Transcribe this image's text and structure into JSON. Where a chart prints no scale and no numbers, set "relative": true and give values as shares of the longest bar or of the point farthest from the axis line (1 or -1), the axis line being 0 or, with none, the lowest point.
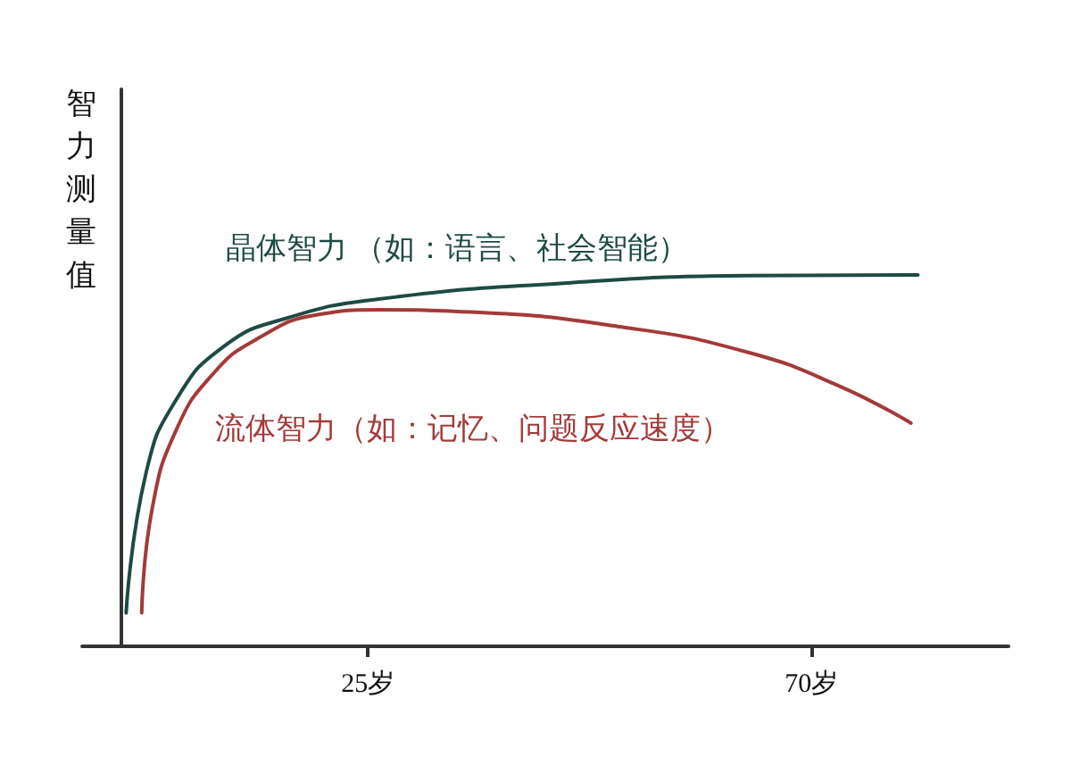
{
  "chart_data": {
    "type": "line",
    "relative": true,
    "ylabel": "智力测量值",
    "xlim": [
      -4,
      90
    ],
    "xticks": [
      {
        "value": 25,
        "label": "25岁"
      },
      {
        "value": 70,
        "label": "70岁"
      }
    ],
    "marker": "none",
    "line_style": "solid",
    "grid": false,
    "series": [
      {
        "name": "晶体智力 （如：语言、社会智能）",
        "color": "#1f4a44",
        "x": [
          0.47,
          2.48,
          5.59,
          10.5,
          16.8,
          26.1,
          44.9,
          63.5,
          80.8
        ],
        "values": [
          0.09,
          0.466,
          0.666,
          0.81,
          0.884,
          0.935,
          0.978,
          0.998,
          1.0
        ]
      },
      {
        "name": "流体智力（如：记忆、问题反应速度）",
        "color": "#a33a3a",
        "x": [
          2.05,
          3.1,
          5.59,
          9.33,
          13.7,
          19.9,
          26.1,
          35.5,
          51.0,
          63.5,
          72.9,
          80.1
        ],
        "values": [
          0.09,
          0.369,
          0.585,
          0.735,
          0.827,
          0.893,
          0.906,
          0.9,
          0.859,
          0.792,
          0.7,
          0.601
        ]
      }
    ]
  }
}
